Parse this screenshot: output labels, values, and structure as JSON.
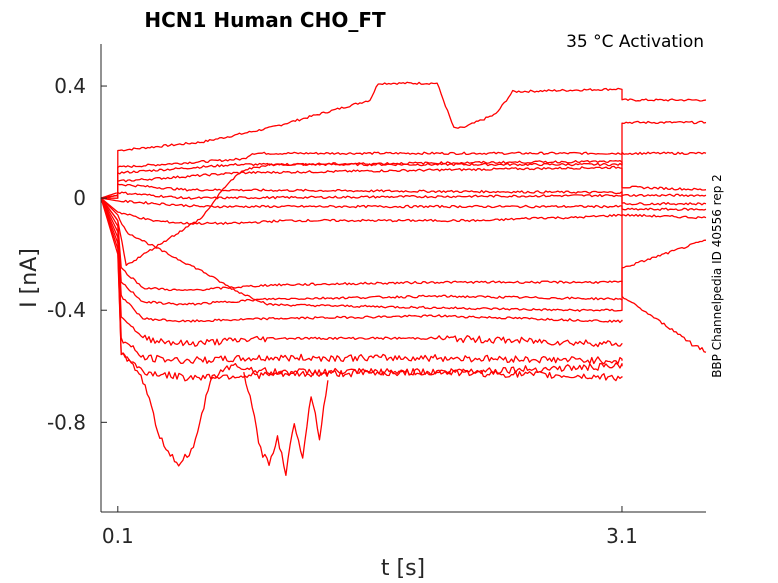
{
  "chart_data": {
    "type": "line",
    "title": "HCN1  Human  CHO_FT",
    "subtitle": "35 °C  Activation",
    "xlabel": "t [s]",
    "ylabel": "I [nA]",
    "side_label": "BBP Channelpedia ID 40556 rep 2",
    "x_ticks": [
      "0.1",
      "3.1"
    ],
    "x_tick_values": [
      0.1,
      3.1
    ],
    "y_ticks": [
      "0.4",
      "0",
      "-0.4",
      "-0.8"
    ],
    "y_tick_values": [
      0.4,
      0,
      -0.4,
      -0.8
    ],
    "xlim": [
      0,
      3.6
    ],
    "ylim": [
      -1.12,
      0.55
    ],
    "grid": false,
    "color": "#ff0000",
    "series": [
      {
        "x": [
          0,
          0.1,
          0.1,
          0.6,
          1.0,
          1.3,
          1.6,
          1.65,
          1.75,
          2.0,
          2.1,
          2.15,
          2.35,
          2.45,
          3.1,
          3.1,
          3.6
        ],
        "y": [
          0,
          0.01,
          0.17,
          0.2,
          0.25,
          0.3,
          0.35,
          0.41,
          0.41,
          0.41,
          0.25,
          0.25,
          0.3,
          0.38,
          0.39,
          0.35,
          0.35
        ]
      },
      {
        "x": [
          0,
          0.1,
          0.1,
          0.6,
          0.85,
          0.9,
          3.1,
          3.1,
          3.6
        ],
        "y": [
          0,
          0,
          0.11,
          0.13,
          0.14,
          0.16,
          0.16,
          0.27,
          0.27
        ]
      },
      {
        "x": [
          0,
          0.1,
          0.1,
          0.8,
          3.1,
          3.1,
          3.6
        ],
        "y": [
          0,
          0.01,
          0.09,
          0.12,
          0.12,
          0.16,
          0.16
        ]
      },
      {
        "x": [
          0,
          0.1,
          0.1,
          0.8,
          3.1,
          3.1,
          3.6
        ],
        "y": [
          0,
          0.02,
          0.06,
          0.09,
          0.11,
          0.04,
          0.03
        ]
      },
      {
        "x": [
          0,
          0.1,
          0.1,
          0.5,
          3.1,
          3.1,
          3.6
        ],
        "y": [
          0,
          0.01,
          0.05,
          0.03,
          0.02,
          0.01,
          0.01
        ]
      },
      {
        "x": [
          0,
          0.1,
          0.1,
          0.5,
          3.1,
          3.1,
          3.6
        ],
        "y": [
          0,
          0,
          0.02,
          0.0,
          0.01,
          -0.02,
          -0.02
        ]
      },
      {
        "x": [
          0,
          0.1,
          0.1,
          0.6,
          3.1,
          3.1,
          3.6
        ],
        "y": [
          0,
          -0.01,
          -0.01,
          -0.03,
          -0.03,
          -0.04,
          -0.04
        ]
      },
      {
        "x": [
          0,
          0.1,
          0.3,
          0.5,
          0.8,
          1.1,
          1.4,
          1.7,
          2.0,
          2.3,
          2.6,
          2.8,
          3.1,
          3.1,
          3.6
        ],
        "y": [
          0,
          -0.05,
          -0.08,
          -0.09,
          -0.09,
          -0.08,
          -0.08,
          -0.08,
          -0.08,
          -0.08,
          -0.07,
          -0.07,
          -0.06,
          -0.06,
          -0.07
        ]
      },
      {
        "x": [
          0,
          0.1,
          0.15,
          0.4,
          0.6,
          0.8,
          1.0,
          2.8,
          3.1,
          3.1,
          3.6
        ],
        "y": [
          0,
          -0.06,
          -0.12,
          -0.2,
          -0.26,
          -0.33,
          -0.38,
          -0.4,
          -0.4,
          -0.25,
          -0.15
        ]
      },
      {
        "x": [
          0,
          0.1,
          0.15,
          0.6,
          0.75,
          0.85,
          1.0,
          2.8,
          3.1,
          3.1,
          3.6
        ],
        "y": [
          0,
          -0.08,
          -0.24,
          -0.07,
          0.05,
          0.1,
          0.12,
          0.13,
          0.13,
          -0.35,
          -0.55
        ]
      },
      {
        "x": [
          0,
          0.1,
          0.12,
          0.25,
          0.5,
          1.0,
          2.0,
          3.1,
          3.1
        ],
        "y": [
          0,
          -0.08,
          -0.25,
          -0.32,
          -0.33,
          -0.31,
          -0.3,
          -0.3,
          -0.3
        ]
      },
      {
        "x": [
          0,
          0.1,
          0.12,
          0.25,
          0.5,
          1.0,
          2.0,
          3.1,
          3.1
        ],
        "y": [
          0,
          -0.1,
          -0.3,
          -0.37,
          -0.38,
          -0.36,
          -0.35,
          -0.36,
          -0.36
        ]
      },
      {
        "x": [
          0,
          0.1,
          0.12,
          0.25,
          0.5,
          1.0,
          2.0,
          3.1,
          3.1
        ],
        "y": [
          0,
          -0.12,
          -0.35,
          -0.43,
          -0.44,
          -0.43,
          -0.42,
          -0.44,
          -0.44
        ]
      },
      {
        "x": [
          0,
          0.1,
          0.12,
          0.25,
          0.5,
          1.0,
          2.0,
          3.1,
          3.1
        ],
        "y": [
          0,
          -0.14,
          -0.42,
          -0.5,
          -0.52,
          -0.5,
          -0.5,
          -0.52,
          -0.52
        ]
      },
      {
        "x": [
          0,
          0.1,
          0.12,
          0.25,
          0.5,
          1.0,
          2.0,
          3.1,
          3.1
        ],
        "y": [
          0,
          -0.16,
          -0.5,
          -0.57,
          -0.58,
          -0.57,
          -0.57,
          -0.58,
          -0.58
        ]
      },
      {
        "x": [
          0,
          0.1,
          0.12,
          0.25,
          0.5,
          1.0,
          2.0,
          3.1,
          3.1
        ],
        "y": [
          0,
          -0.18,
          -0.55,
          -0.62,
          -0.64,
          -0.63,
          -0.62,
          -0.64,
          -0.64
        ]
      },
      {
        "x": [
          0,
          0.1,
          0.12,
          0.25,
          0.35,
          0.45,
          0.55,
          0.65,
          0.75,
          0.8,
          1.0,
          2.0,
          3.1,
          3.1
        ],
        "y": [
          0,
          -0.2,
          -0.55,
          -0.65,
          -0.85,
          -0.95,
          -0.9,
          -0.65,
          -0.6,
          -0.6,
          -0.62,
          -0.62,
          -0.6,
          -0.6
        ]
      },
      {
        "x": [
          0.85,
          0.9,
          0.95,
          1.0,
          1.05,
          1.1,
          1.15,
          1.2,
          1.25,
          1.3,
          1.35
        ],
        "y": [
          -0.62,
          -0.75,
          -0.9,
          -0.95,
          -0.85,
          -0.98,
          -0.8,
          -0.92,
          -0.7,
          -0.85,
          -0.65
        ]
      }
    ]
  }
}
